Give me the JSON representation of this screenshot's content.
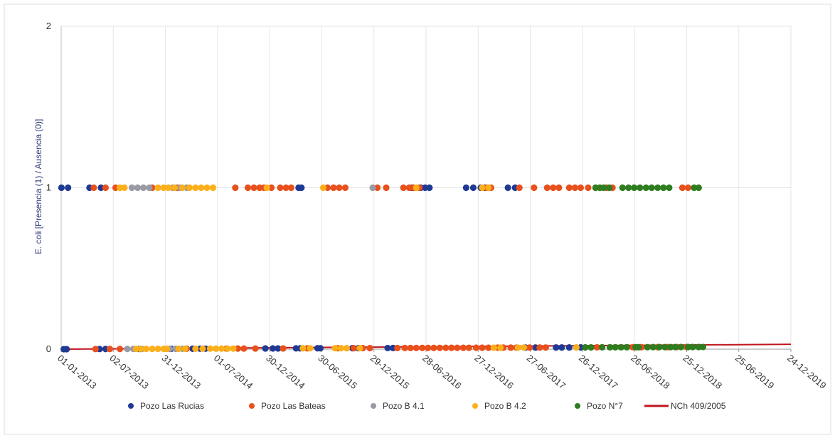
{
  "chart_data": {
    "type": "scatter",
    "xlabel": "",
    "ylabel": "E. coli [Presencia (1) / Ausencia (0)]",
    "ylim": [
      0,
      2
    ],
    "yticks": [
      0,
      1,
      2
    ],
    "xlim": [
      "2013-01-01",
      "2019-12-24"
    ],
    "xtick_labels": [
      "01-01-2013",
      "02-07-2013",
      "31-12-2013",
      "01-07-2014",
      "30-12-2014",
      "30-06-2015",
      "29-12-2015",
      "28-06-2016",
      "27-12-2016",
      "27-06-2017",
      "26-12-2017",
      "26-06-2018",
      "25-12-2018",
      "25-06-2019",
      "24-12-2019"
    ],
    "grid": true,
    "legend_position": "bottom",
    "series": [
      {
        "name": "Pozo Las Rucias",
        "color": "#1f3a93",
        "marker": "circle",
        "points": [
          {
            "x": "2013-01-02",
            "y": 1
          },
          {
            "x": "2013-01-25",
            "y": 1
          },
          {
            "x": "2013-04-10",
            "y": 1
          },
          {
            "x": "2013-05-20",
            "y": 1
          },
          {
            "x": "2013-01-10",
            "y": 0
          },
          {
            "x": "2013-01-20",
            "y": 0
          },
          {
            "x": "2013-05-15",
            "y": 0
          },
          {
            "x": "2013-06-05",
            "y": 0
          },
          {
            "x": "2013-10-01",
            "y": 0
          },
          {
            "x": "2014-01-20",
            "y": 0
          },
          {
            "x": "2014-04-05",
            "y": 0
          },
          {
            "x": "2014-05-01",
            "y": 0
          },
          {
            "x": "2014-05-20",
            "y": 0
          },
          {
            "x": "2014-12-15",
            "y": 0
          },
          {
            "x": "2015-01-10",
            "y": 0
          },
          {
            "x": "2015-01-28",
            "y": 0
          },
          {
            "x": "2015-04-10",
            "y": 1
          },
          {
            "x": "2015-04-20",
            "y": 1
          },
          {
            "x": "2015-04-01",
            "y": 0
          },
          {
            "x": "2015-04-15",
            "y": 0
          },
          {
            "x": "2015-06-15",
            "y": 0
          },
          {
            "x": "2015-06-25",
            "y": 0
          },
          {
            "x": "2015-10-15",
            "y": 0
          },
          {
            "x": "2015-11-05",
            "y": 0
          },
          {
            "x": "2016-02-15",
            "y": 0
          },
          {
            "x": "2016-03-05",
            "y": 0
          },
          {
            "x": "2016-05-10",
            "y": 1
          },
          {
            "x": "2016-06-10",
            "y": 1
          },
          {
            "x": "2016-06-25",
            "y": 1
          },
          {
            "x": "2016-07-10",
            "y": 1
          },
          {
            "x": "2016-11-15",
            "y": 1
          },
          {
            "x": "2016-12-10",
            "y": 1
          },
          {
            "x": "2017-01-05",
            "y": 1
          },
          {
            "x": "2017-01-20",
            "y": 1
          },
          {
            "x": "2017-04-10",
            "y": 1
          },
          {
            "x": "2017-05-05",
            "y": 1
          },
          {
            "x": "2017-06-10",
            "y": 0
          },
          {
            "x": "2017-07-15",
            "y": 0
          },
          {
            "x": "2017-09-25",
            "y": 0
          },
          {
            "x": "2017-10-15",
            "y": 0
          },
          {
            "x": "2017-11-10",
            "y": 0
          },
          {
            "x": "2017-12-20",
            "y": 0
          }
        ]
      },
      {
        "name": "Pozo Las Bateas",
        "color": "#e8501c",
        "marker": "circle",
        "points": [
          {
            "x": "2013-04-25",
            "y": 1
          },
          {
            "x": "2013-06-05",
            "y": 1
          },
          {
            "x": "2013-07-10",
            "y": 1
          },
          {
            "x": "2013-11-15",
            "y": 1
          },
          {
            "x": "2014-02-10",
            "y": 1
          },
          {
            "x": "2014-09-01",
            "y": 1
          },
          {
            "x": "2014-10-15",
            "y": 1
          },
          {
            "x": "2014-11-05",
            "y": 1
          },
          {
            "x": "2014-11-25",
            "y": 1
          },
          {
            "x": "2014-12-10",
            "y": 1
          },
          {
            "x": "2015-01-05",
            "y": 1
          },
          {
            "x": "2015-02-05",
            "y": 1
          },
          {
            "x": "2015-02-25",
            "y": 1
          },
          {
            "x": "2015-03-15",
            "y": 1
          },
          {
            "x": "2015-07-20",
            "y": 1
          },
          {
            "x": "2015-08-10",
            "y": 1
          },
          {
            "x": "2015-08-30",
            "y": 1
          },
          {
            "x": "2015-09-20",
            "y": 1
          },
          {
            "x": "2016-01-10",
            "y": 1
          },
          {
            "x": "2016-02-10",
            "y": 1
          },
          {
            "x": "2016-04-10",
            "y": 1
          },
          {
            "x": "2016-04-30",
            "y": 1
          },
          {
            "x": "2016-05-15",
            "y": 1
          },
          {
            "x": "2016-06-05",
            "y": 1
          },
          {
            "x": "2017-01-25",
            "y": 1
          },
          {
            "x": "2017-02-10",
            "y": 1
          },
          {
            "x": "2017-05-20",
            "y": 1
          },
          {
            "x": "2017-07-10",
            "y": 1
          },
          {
            "x": "2017-08-25",
            "y": 1
          },
          {
            "x": "2017-09-15",
            "y": 1
          },
          {
            "x": "2017-10-05",
            "y": 1
          },
          {
            "x": "2017-11-10",
            "y": 1
          },
          {
            "x": "2017-11-30",
            "y": 1
          },
          {
            "x": "2017-12-20",
            "y": 1
          },
          {
            "x": "2018-01-15",
            "y": 1
          },
          {
            "x": "2018-02-10",
            "y": 1
          },
          {
            "x": "2018-03-20",
            "y": 1
          },
          {
            "x": "2018-04-10",
            "y": 1
          },
          {
            "x": "2018-12-10",
            "y": 1
          },
          {
            "x": "2018-12-30",
            "y": 1
          },
          {
            "x": "2013-05-01",
            "y": 0
          },
          {
            "x": "2013-06-20",
            "y": 0
          },
          {
            "x": "2013-07-25",
            "y": 0
          },
          {
            "x": "2014-03-15",
            "y": 0
          },
          {
            "x": "2014-08-01",
            "y": 0
          },
          {
            "x": "2014-09-10",
            "y": 0
          },
          {
            "x": "2014-10-01",
            "y": 0
          },
          {
            "x": "2014-11-10",
            "y": 0
          },
          {
            "x": "2015-02-15",
            "y": 0
          },
          {
            "x": "2015-05-10",
            "y": 0
          },
          {
            "x": "2015-08-25",
            "y": 0
          },
          {
            "x": "2015-10-20",
            "y": 0
          },
          {
            "x": "2015-11-20",
            "y": 0
          },
          {
            "x": "2015-12-15",
            "y": 0
          },
          {
            "x": "2016-03-20",
            "y": 0
          },
          {
            "x": "2016-04-15",
            "y": 0
          },
          {
            "x": "2016-05-05",
            "y": 0
          },
          {
            "x": "2016-05-25",
            "y": 0
          },
          {
            "x": "2016-06-15",
            "y": 0
          },
          {
            "x": "2016-07-05",
            "y": 0
          },
          {
            "x": "2016-07-25",
            "y": 0
          },
          {
            "x": "2016-08-15",
            "y": 0
          },
          {
            "x": "2016-09-05",
            "y": 0
          },
          {
            "x": "2016-09-25",
            "y": 0
          },
          {
            "x": "2016-10-15",
            "y": 0
          },
          {
            "x": "2016-11-05",
            "y": 0
          },
          {
            "x": "2016-11-25",
            "y": 0
          },
          {
            "x": "2016-12-20",
            "y": 0
          },
          {
            "x": "2017-01-10",
            "y": 0
          },
          {
            "x": "2017-02-01",
            "y": 0
          },
          {
            "x": "2017-03-05",
            "y": 0
          },
          {
            "x": "2017-03-25",
            "y": 0
          },
          {
            "x": "2017-04-20",
            "y": 0
          },
          {
            "x": "2017-05-10",
            "y": 0
          },
          {
            "x": "2017-06-25",
            "y": 0
          },
          {
            "x": "2017-07-30",
            "y": 0
          },
          {
            "x": "2017-08-20",
            "y": 0
          },
          {
            "x": "2018-02-15",
            "y": 0
          },
          {
            "x": "2018-06-20",
            "y": 0
          },
          {
            "x": "2018-07-20",
            "y": 0
          },
          {
            "x": "2018-09-15",
            "y": 0
          },
          {
            "x": "2018-10-20",
            "y": 0
          },
          {
            "x": "2018-11-20",
            "y": 0
          },
          {
            "x": "2018-12-25",
            "y": 0
          }
        ]
      },
      {
        "name": "Pozo B 4.1",
        "color": "#9a9aa6",
        "marker": "circle",
        "points": [
          {
            "x": "2013-09-05",
            "y": 1
          },
          {
            "x": "2013-09-25",
            "y": 1
          },
          {
            "x": "2013-10-15",
            "y": 1
          },
          {
            "x": "2013-11-05",
            "y": 1
          },
          {
            "x": "2014-01-25",
            "y": 1
          },
          {
            "x": "2014-02-20",
            "y": 1
          },
          {
            "x": "2014-03-15",
            "y": 1
          },
          {
            "x": "2015-12-25",
            "y": 1
          },
          {
            "x": "2013-08-20",
            "y": 0
          },
          {
            "x": "2013-09-10",
            "y": 0
          },
          {
            "x": "2013-10-10",
            "y": 0
          },
          {
            "x": "2014-01-15",
            "y": 0
          },
          {
            "x": "2014-02-05",
            "y": 0
          },
          {
            "x": "2014-03-01",
            "y": 0
          }
        ]
      },
      {
        "name": "Pozo B 4.2",
        "color": "#fbb01b",
        "marker": "circle",
        "points": [
          {
            "x": "2013-07-25",
            "y": 1
          },
          {
            "x": "2013-08-10",
            "y": 1
          },
          {
            "x": "2013-12-05",
            "y": 1
          },
          {
            "x": "2013-12-25",
            "y": 1
          },
          {
            "x": "2014-01-10",
            "y": 1
          },
          {
            "x": "2014-02-01",
            "y": 1
          },
          {
            "x": "2014-02-28",
            "y": 1
          },
          {
            "x": "2014-03-25",
            "y": 1
          },
          {
            "x": "2014-04-15",
            "y": 1
          },
          {
            "x": "2014-05-05",
            "y": 1
          },
          {
            "x": "2014-05-25",
            "y": 1
          },
          {
            "x": "2014-06-15",
            "y": 1
          },
          {
            "x": "2014-12-20",
            "y": 1
          },
          {
            "x": "2015-07-05",
            "y": 1
          },
          {
            "x": "2016-05-25",
            "y": 1
          },
          {
            "x": "2017-01-10",
            "y": 1
          },
          {
            "x": "2017-02-01",
            "y": 1
          },
          {
            "x": "2018-02-25",
            "y": 1
          },
          {
            "x": "2013-09-20",
            "y": 0
          },
          {
            "x": "2013-10-05",
            "y": 0
          },
          {
            "x": "2013-10-25",
            "y": 0
          },
          {
            "x": "2013-11-15",
            "y": 0
          },
          {
            "x": "2013-12-05",
            "y": 0
          },
          {
            "x": "2013-12-25",
            "y": 0
          },
          {
            "x": "2014-01-05",
            "y": 0
          },
          {
            "x": "2014-02-15",
            "y": 0
          },
          {
            "x": "2014-03-10",
            "y": 0
          },
          {
            "x": "2014-04-15",
            "y": 0
          },
          {
            "x": "2014-05-10",
            "y": 0
          },
          {
            "x": "2014-06-05",
            "y": 0
          },
          {
            "x": "2014-06-25",
            "y": 0
          },
          {
            "x": "2014-07-15",
            "y": 0
          },
          {
            "x": "2014-08-05",
            "y": 0
          },
          {
            "x": "2014-08-25",
            "y": 0
          },
          {
            "x": "2015-04-25",
            "y": 0
          },
          {
            "x": "2015-05-20",
            "y": 0
          },
          {
            "x": "2015-08-15",
            "y": 0
          },
          {
            "x": "2015-09-05",
            "y": 0
          },
          {
            "x": "2015-09-25",
            "y": 0
          },
          {
            "x": "2015-11-10",
            "y": 0
          },
          {
            "x": "2017-02-20",
            "y": 0
          },
          {
            "x": "2017-03-15",
            "y": 0
          },
          {
            "x": "2017-05-15",
            "y": 0
          },
          {
            "x": "2017-06-05",
            "y": 0
          },
          {
            "x": "2017-12-05",
            "y": 0
          }
        ]
      },
      {
        "name": "Pozo N°7",
        "color": "#2e7d1f",
        "marker": "circle",
        "points": [
          {
            "x": "2018-02-10",
            "y": 1
          },
          {
            "x": "2018-02-25",
            "y": 1
          },
          {
            "x": "2018-03-10",
            "y": 1
          },
          {
            "x": "2018-03-30",
            "y": 1
          },
          {
            "x": "2018-05-15",
            "y": 1
          },
          {
            "x": "2018-06-05",
            "y": 1
          },
          {
            "x": "2018-06-25",
            "y": 1
          },
          {
            "x": "2018-07-15",
            "y": 1
          },
          {
            "x": "2018-08-05",
            "y": 1
          },
          {
            "x": "2018-08-25",
            "y": 1
          },
          {
            "x": "2018-09-15",
            "y": 1
          },
          {
            "x": "2018-10-05",
            "y": 1
          },
          {
            "x": "2018-10-25",
            "y": 1
          },
          {
            "x": "2019-01-20",
            "y": 1
          },
          {
            "x": "2019-02-05",
            "y": 1
          },
          {
            "x": "2018-01-05",
            "y": 0
          },
          {
            "x": "2018-01-25",
            "y": 0
          },
          {
            "x": "2018-03-05",
            "y": 0
          },
          {
            "x": "2018-04-01",
            "y": 0
          },
          {
            "x": "2018-04-20",
            "y": 0
          },
          {
            "x": "2018-05-10",
            "y": 0
          },
          {
            "x": "2018-05-30",
            "y": 0
          },
          {
            "x": "2018-06-30",
            "y": 0
          },
          {
            "x": "2018-07-10",
            "y": 0
          },
          {
            "x": "2018-08-10",
            "y": 0
          },
          {
            "x": "2018-08-30",
            "y": 0
          },
          {
            "x": "2018-09-20",
            "y": 0
          },
          {
            "x": "2018-10-10",
            "y": 0
          },
          {
            "x": "2018-10-30",
            "y": 0
          },
          {
            "x": "2018-11-15",
            "y": 0
          },
          {
            "x": "2018-12-05",
            "y": 0
          },
          {
            "x": "2018-12-30",
            "y": 0
          },
          {
            "x": "2019-01-15",
            "y": 0
          },
          {
            "x": "2019-02-05",
            "y": 0
          },
          {
            "x": "2019-02-20",
            "y": 0
          }
        ]
      }
    ],
    "reference_line": {
      "name": "NCh 409/2005",
      "color": "#c0141c",
      "points": [
        {
          "x": "2013-01-01",
          "y": 0
        },
        {
          "x": "2019-12-24",
          "y": 0.03
        }
      ]
    }
  }
}
